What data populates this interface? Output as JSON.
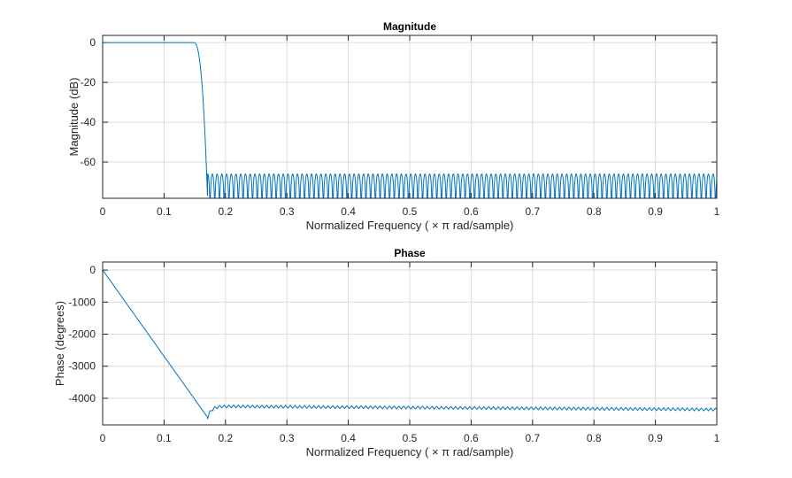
{
  "chart_data": [
    {
      "type": "line",
      "title": "Magnitude",
      "xlabel": "Normalized  Frequency    ( × π  rad/sample)",
      "ylabel": "Magnitude (dB)",
      "xlim": [
        0,
        1
      ],
      "ylim": [
        -78.2,
        3.6
      ],
      "xticks": [
        "0",
        "0.1",
        "0.2",
        "0.3",
        "0.4",
        "0.5",
        "0.6",
        "0.7",
        "0.8",
        "0.9",
        "1"
      ],
      "yticks": [
        0,
        -20,
        -40,
        -60
      ],
      "grid": true,
      "color": "#0072BD",
      "series": {
        "passband_edge": 0.148,
        "stopband_edge": 0.171,
        "passband_db": 0,
        "stopband_peak_db": -66,
        "stopband_lobes_per_unit": 130
      }
    },
    {
      "type": "line",
      "title": "Phase",
      "xlabel": "Normalized  Frequency    ( × π  rad/sample)",
      "ylabel": "Phase (degrees)",
      "xlim": [
        0,
        1
      ],
      "ylim": [
        -4830,
        250
      ],
      "xticks": [
        "0",
        "0.1",
        "0.2",
        "0.3",
        "0.4",
        "0.5",
        "0.6",
        "0.7",
        "0.8",
        "0.9",
        "1"
      ],
      "yticks": [
        0,
        -1000,
        -2000,
        -3000,
        -4000
      ],
      "grid": true,
      "color": "#0072BD",
      "series": {
        "start_deg": 0,
        "min_at": 0.171,
        "min_deg": -4600,
        "stopband_start_deg": -4250,
        "end_deg": -4350,
        "ripple_deg": 45,
        "ripples_per_unit": 130
      }
    }
  ]
}
